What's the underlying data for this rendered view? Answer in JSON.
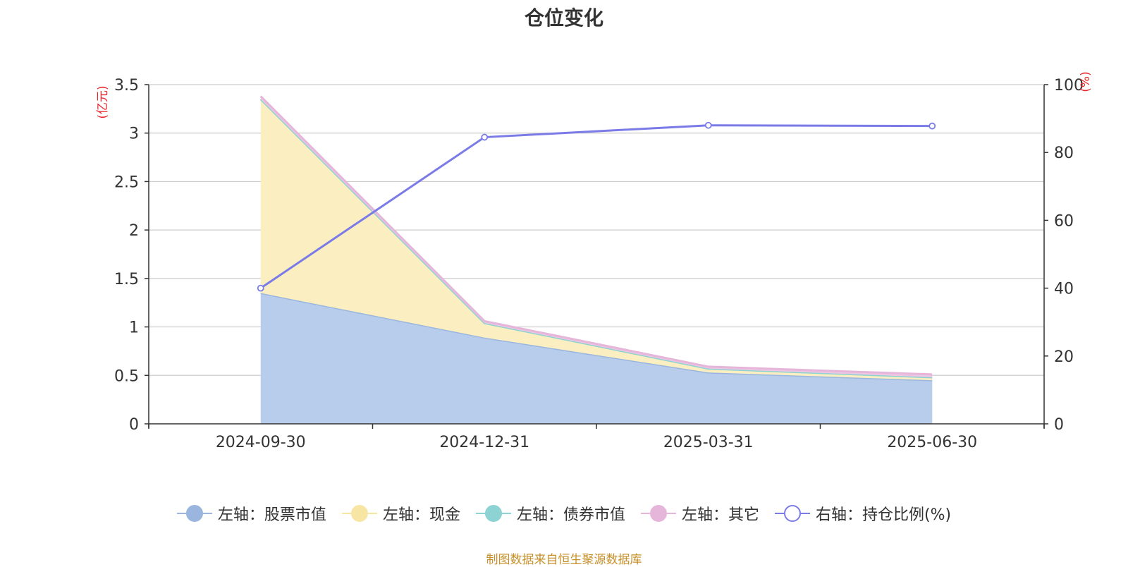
{
  "chart_data": {
    "type": "area",
    "title": "仓位变化",
    "categories": [
      "2024-09-30",
      "2024-12-31",
      "2025-03-31",
      "2025-06-30"
    ],
    "left_axis": {
      "label": "(亿元)",
      "range": [
        0,
        3.5
      ],
      "ticks": [
        "0",
        "0.5",
        "1",
        "1.5",
        "2",
        "2.5",
        "3",
        "3.5"
      ],
      "tick_values": [
        0,
        0.5,
        1,
        1.5,
        2,
        2.5,
        3,
        3.5
      ]
    },
    "right_axis": {
      "label": "(%)",
      "range": [
        0,
        100
      ],
      "ticks": [
        "0",
        "20",
        "40",
        "60",
        "80",
        "100"
      ],
      "tick_values": [
        0,
        20,
        40,
        60,
        80,
        100
      ]
    },
    "stacked_series": [
      {
        "name": "左轴：股票市值",
        "values": [
          1.35,
          0.89,
          0.53,
          0.45
        ],
        "line_color": "#9ab6de",
        "fill_color": "#b8cdeb"
      },
      {
        "name": "左轴：现金",
        "values": [
          2.0,
          0.15,
          0.04,
          0.03
        ],
        "line_color": "#f7e6a3",
        "fill_color": "#fbefc2"
      },
      {
        "name": "左轴：债券市值",
        "values": [
          0,
          0,
          0,
          0
        ],
        "line_color": "#8ed3d3",
        "fill_color": "#a9dcdc"
      },
      {
        "name": "左轴：其它",
        "values": [
          0.03,
          0.02,
          0.02,
          0.03
        ],
        "line_color": "#e6b6da",
        "fill_color": "#ecc7e3"
      }
    ],
    "line_series": {
      "name": "右轴：持仓比例(%)",
      "values": [
        40,
        84.5,
        88,
        87.8
      ],
      "color": "#7b7be8"
    },
    "legend_position": "bottom",
    "grid": true,
    "axis_label_color": "#e8262a"
  },
  "source_note": "制图数据来自恒生聚源数据库"
}
